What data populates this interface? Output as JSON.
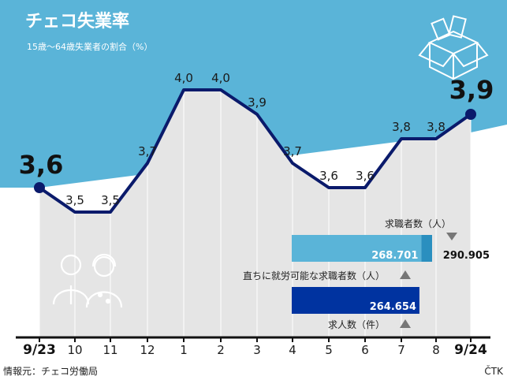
{
  "header": {
    "title": "チェコ失業率",
    "subtitle": "15歳〜64歳失業者の割合（%）"
  },
  "chart_data": {
    "type": "line",
    "categories": [
      "9/23",
      "10",
      "11",
      "12",
      "1",
      "2",
      "3",
      "4",
      "5",
      "6",
      "7",
      "8",
      "9/24"
    ],
    "values": [
      3.6,
      3.5,
      3.5,
      3.7,
      4.0,
      4.0,
      3.9,
      3.7,
      3.6,
      3.6,
      3.8,
      3.8,
      3.9
    ],
    "value_labels": [
      "3,6",
      "3,5",
      "3,5",
      "3,7",
      "4,0",
      "4,0",
      "3,9",
      "3,7",
      "3,6",
      "3,6",
      "3,8",
      "3,8",
      "3,9"
    ],
    "line_color": "#0a1a6b",
    "header_color": "#5ab4d8"
  },
  "inset": {
    "rows": [
      {
        "label": "求職者数（人）",
        "value": 290905,
        "value_label": "290.905",
        "prev_value": 268701,
        "prev_label": "268.701",
        "trend": "down",
        "color": "#5ab4d8",
        "accent": "#2a8fbf"
      },
      {
        "label": "直ちに就労可能な求職者数（人）",
        "trend": "up"
      },
      {
        "value": 264654,
        "value_label": "264.654",
        "color": "#0033a0"
      },
      {
        "label": "求人数（件）",
        "trend": "up"
      }
    ]
  },
  "footer": {
    "source": "情報元：チェコ労働局",
    "brand": "ČTK"
  },
  "icons": {
    "box": "open-box-icon",
    "people": "people-icon"
  }
}
